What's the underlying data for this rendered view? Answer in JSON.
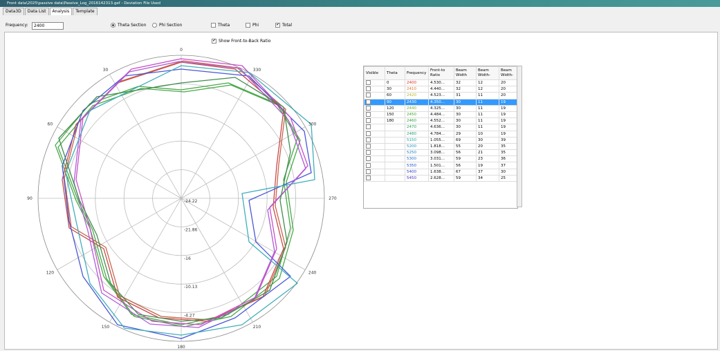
{
  "window": {
    "title": "Front data\\2025\\passive data\\Passive_Log_2016142313.gef - Deviation File Used"
  },
  "tabs": [
    "Data3D",
    "Data List",
    "Analysis",
    "Template"
  ],
  "active_tab": 2,
  "toolbar": {
    "frequency_label": "Frequency:",
    "frequency": "2400",
    "sections": [
      {
        "label": "Theta Section",
        "selected": true
      },
      {
        "label": "Phi Section",
        "selected": false
      }
    ],
    "components": [
      {
        "label": "Theta",
        "checked": false
      },
      {
        "label": "Phi",
        "checked": false
      },
      {
        "label": "Total",
        "checked": true
      }
    ]
  },
  "front_to_back": {
    "label": "Show Front-to-Back Ratio",
    "checked": true
  },
  "polar": {
    "angles": [
      0,
      30,
      60,
      90,
      120,
      150,
      180,
      210,
      240,
      270,
      300,
      330
    ],
    "radial_labels": [
      -24.22,
      -21.86,
      -16,
      -10.13,
      -4.27
    ]
  },
  "table": {
    "headers": [
      "Visible",
      "Theta",
      "Frequency",
      "Front-to Ratio",
      "Beam Width",
      "Beam Width-",
      "Beam Width-"
    ],
    "rows": [
      {
        "checked": false,
        "theta": 0,
        "frequency": 2400,
        "color": "#e0302a",
        "ratio": "4.530...",
        "bw1": 32,
        "bw2": 12,
        "bw3": 20
      },
      {
        "checked": false,
        "theta": 30,
        "frequency": 2410,
        "color": "#e07020",
        "ratio": "4.440...",
        "bw1": 32,
        "bw2": 12,
        "bw3": 20
      },
      {
        "checked": false,
        "theta": 60,
        "frequency": 2420,
        "color": "#b8b020",
        "ratio": "4.523...",
        "bw1": 31,
        "bw2": 11,
        "bw3": 20
      },
      {
        "checked": true,
        "selected": true,
        "theta": 90,
        "frequency": 2430,
        "color": "#ffffff",
        "ratio": "4.350...",
        "bw1": 30,
        "bw2": 11,
        "bw3": 19
      },
      {
        "checked": false,
        "theta": 120,
        "frequency": 2440,
        "color": "#70b020",
        "ratio": "4.325...",
        "bw1": 30,
        "bw2": 11,
        "bw3": 19
      },
      {
        "checked": false,
        "theta": 150,
        "frequency": 2450,
        "color": "#40a030",
        "ratio": "4.484...",
        "bw1": 30,
        "bw2": 11,
        "bw3": 19
      },
      {
        "checked": false,
        "theta": 180,
        "frequency": 2460,
        "color": "#30a040",
        "ratio": "4.552...",
        "bw1": 30,
        "bw2": 11,
        "bw3": 19
      },
      {
        "checked": false,
        "theta": null,
        "frequency": 2470,
        "color": "#20a050",
        "ratio": "4.636...",
        "bw1": 30,
        "bw2": 11,
        "bw3": 19
      },
      {
        "checked": false,
        "theta": null,
        "frequency": 2480,
        "color": "#20a070",
        "ratio": "4.784...",
        "bw1": 29,
        "bw2": 10,
        "bw3": 19
      },
      {
        "checked": false,
        "theta": null,
        "frequency": 5150,
        "color": "#20a0a0",
        "ratio": "1.055...",
        "bw1": 69,
        "bw2": 30,
        "bw3": 39
      },
      {
        "checked": false,
        "theta": null,
        "frequency": 5200,
        "color": "#2090b0",
        "ratio": "1.818...",
        "bw1": 55,
        "bw2": 20,
        "bw3": 35
      },
      {
        "checked": false,
        "theta": null,
        "frequency": 5250,
        "color": "#2080c0",
        "ratio": "3.098...",
        "bw1": 56,
        "bw2": 21,
        "bw3": 35
      },
      {
        "checked": false,
        "theta": null,
        "frequency": 5300,
        "color": "#2070d0",
        "ratio": "3.031...",
        "bw1": 59,
        "bw2": 23,
        "bw3": 36
      },
      {
        "checked": false,
        "theta": null,
        "frequency": 5350,
        "color": "#2050d0",
        "ratio": "1.501...",
        "bw1": 56,
        "bw2": 19,
        "bw3": 37
      },
      {
        "checked": false,
        "theta": null,
        "frequency": 5400,
        "color": "#3040d0",
        "ratio": "1.638...",
        "bw1": 67,
        "bw2": 37,
        "bw3": 30
      },
      {
        "checked": false,
        "theta": null,
        "frequency": 5450,
        "color": "#4030c0",
        "ratio": "2.628...",
        "bw1": 59,
        "bw2": 34,
        "bw3": 25
      }
    ]
  }
}
